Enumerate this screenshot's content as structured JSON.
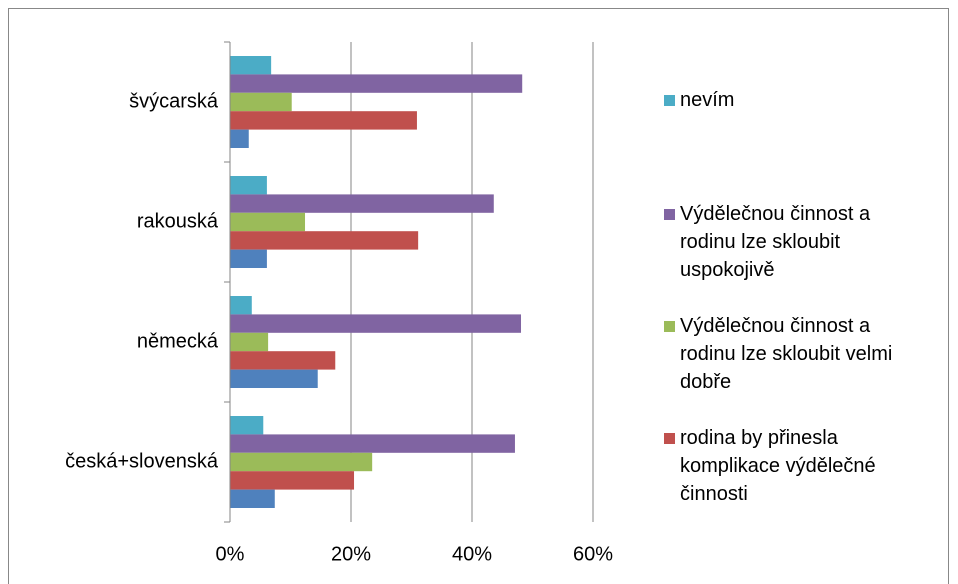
{
  "chart_data": {
    "type": "bar",
    "orientation": "horizontal",
    "categories": [
      "švýcarská",
      "rakouská",
      "německá",
      "česká+slovenská"
    ],
    "series": [
      {
        "name": "nevím",
        "color": "#4bacc6",
        "values": [
          6.8,
          6.1,
          3.6,
          5.5
        ]
      },
      {
        "name": "Výdělečnou činnost a rodinu lze skloubit uspokojivě",
        "color": "#8064a2",
        "values": [
          48.3,
          43.6,
          48.1,
          47.1
        ]
      },
      {
        "name": "Výdělečnou činnost a rodinu lze skloubit velmi dobře",
        "color": "#9bbb59",
        "values": [
          10.2,
          12.4,
          6.3,
          23.5
        ]
      },
      {
        "name": "rodina by přinesla komplikace výdělečné činnosti",
        "color": "#c0504d",
        "values": [
          30.9,
          31.1,
          17.4,
          20.5
        ]
      },
      {
        "color": "#4f81bd",
        "values": [
          3.1,
          6.1,
          14.5,
          7.4
        ]
      }
    ],
    "xlim": [
      0,
      60
    ],
    "xticks": [
      {
        "value": 0,
        "label": "0%"
      },
      {
        "value": 20,
        "label": "20%"
      },
      {
        "value": 40,
        "label": "40%"
      },
      {
        "value": 60,
        "label": "60%"
      }
    ],
    "grid": true,
    "legend": "right"
  }
}
